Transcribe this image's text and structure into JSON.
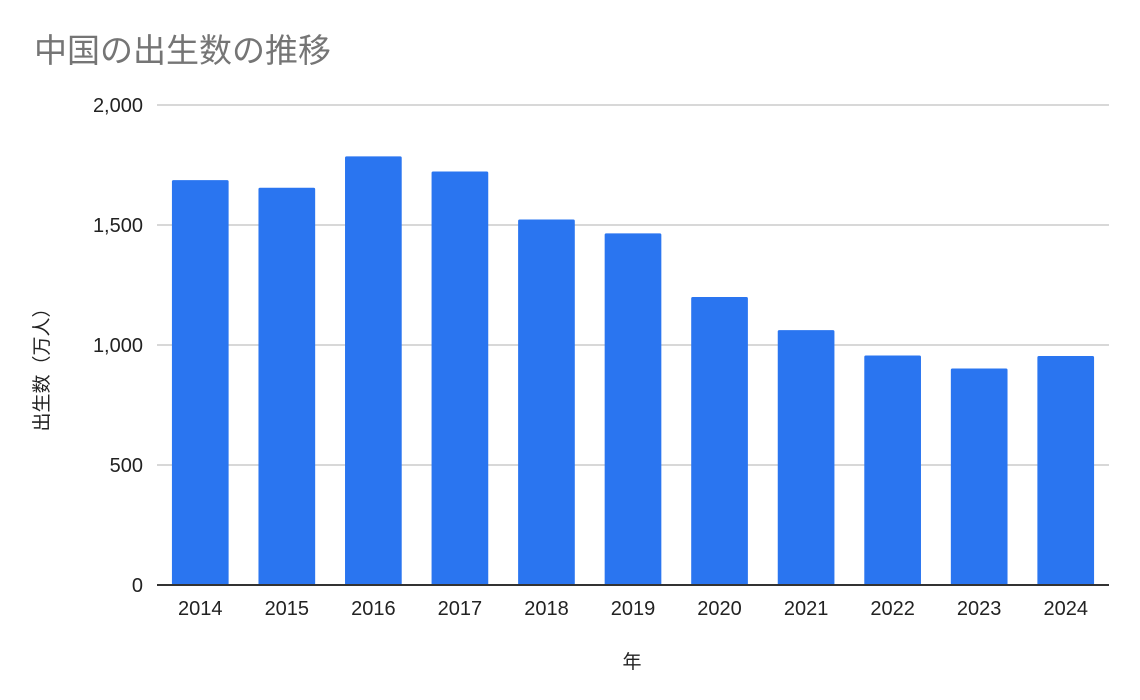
{
  "chart_data": {
    "type": "bar",
    "title": "中国の出生数の推移",
    "xlabel": "年",
    "ylabel": "出生数（万人）",
    "categories": [
      "2014",
      "2015",
      "2016",
      "2017",
      "2018",
      "2019",
      "2020",
      "2021",
      "2022",
      "2023",
      "2024"
    ],
    "series": [
      {
        "values": [
          1687,
          1655,
          1786,
          1723,
          1523,
          1465,
          1200,
          1062,
          956,
          902,
          954
        ]
      }
    ],
    "ylim": [
      0,
      2000
    ],
    "yticks": [
      0,
      500,
      1000,
      1500,
      2000
    ],
    "ytick_labels": [
      "0",
      "500",
      "1,000",
      "1,500",
      "2,000"
    ],
    "grid": true,
    "legend": "none",
    "bar_color": "#2a75f0",
    "gridline_color": "#cccccc",
    "axis_color": "#333333",
    "title_color": "#757575"
  }
}
